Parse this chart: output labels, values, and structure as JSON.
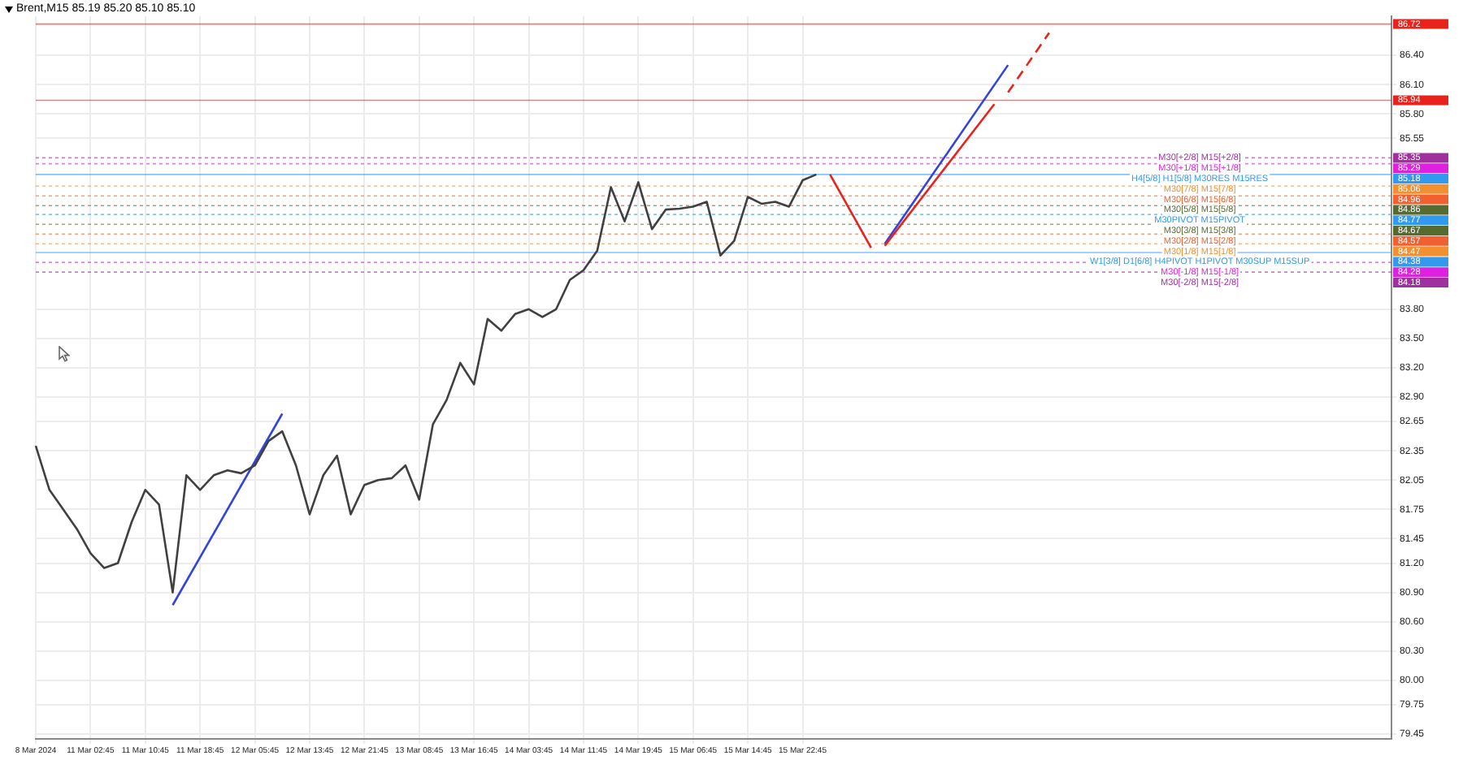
{
  "chart_data": {
    "type": "line",
    "title": "Brent,M15  85.19 85.20 85.10 85.10",
    "categories": [
      "8 Mar 2024",
      null,
      null,
      null,
      "11 Mar 02:45",
      null,
      null,
      null,
      "11 Mar 10:45",
      null,
      null,
      null,
      "11 Mar 18:45",
      null,
      null,
      null,
      "12 Mar 05:45",
      null,
      null,
      null,
      "12 Mar 13:45",
      null,
      null,
      null,
      "12 Mar 21:45",
      null,
      null,
      null,
      "13 Mar 08:45",
      null,
      null,
      null,
      "13 Mar 16:45",
      null,
      null,
      null,
      "14 Mar 03:45",
      null,
      null,
      null,
      "14 Mar 11:45",
      null,
      null,
      null,
      "14 Mar 19:45",
      null,
      null,
      null,
      "15 Mar 06:45",
      null,
      null,
      null,
      "15 Mar 14:45",
      null,
      null,
      null,
      "15 Mar 22:45",
      null,
      null,
      null,
      null,
      null,
      null,
      null,
      null,
      null,
      null,
      null,
      null,
      null,
      null,
      null,
      null,
      null,
      null,
      null,
      null,
      null,
      null,
      null,
      null,
      null,
      null,
      null,
      null,
      null,
      null,
      null,
      null,
      null,
      null,
      null,
      null,
      null,
      null,
      null,
      null,
      null,
      null,
      null
    ],
    "series": [
      {
        "color": "#404040",
        "values": [
          82.4,
          81.95,
          81.75,
          81.55,
          81.3,
          81.15,
          81.2,
          81.62,
          81.95,
          81.8,
          80.9,
          82.1,
          81.95,
          82.1,
          82.15,
          82.12,
          82.2,
          82.45,
          82.55,
          82.2,
          81.7,
          82.1,
          82.3,
          81.7,
          82.0,
          82.05,
          82.07,
          82.2,
          81.85,
          82.62,
          82.87,
          83.25,
          83.03,
          83.7,
          83.58,
          83.75,
          83.8,
          83.72,
          83.8,
          84.1,
          84.2,
          84.4,
          85.05,
          84.7,
          85.1,
          84.62,
          84.82,
          84.83,
          84.85,
          84.9,
          84.35,
          84.5,
          84.95,
          84.88,
          84.9,
          84.85,
          85.12,
          85.18,
          null,
          null,
          null,
          null,
          null,
          null,
          null,
          null,
          null,
          null,
          null,
          null,
          null,
          null,
          null,
          null,
          null,
          null,
          null,
          null,
          null,
          null,
          null,
          null,
          null,
          null,
          null,
          null,
          null,
          null,
          null,
          null,
          null,
          null,
          null,
          null,
          null,
          null,
          null,
          null,
          null,
          null
        ]
      },
      {
        "color": "#3344dd",
        "values": [
          null,
          null,
          null,
          null,
          null,
          null,
          null,
          null,
          null,
          null,
          80.77,
          null,
          null,
          null,
          null,
          null,
          null,
          null,
          82.73,
          null,
          null,
          null,
          null,
          null,
          null,
          null,
          null,
          null,
          null,
          null,
          null,
          null,
          null,
          null,
          null,
          null,
          null,
          null,
          null,
          null,
          null,
          null,
          null,
          null,
          null,
          null,
          null,
          null,
          null,
          null,
          null,
          null,
          null,
          null,
          null,
          null,
          null,
          null,
          null,
          null,
          null,
          null,
          null,
          null,
          null,
          null,
          null,
          null,
          null,
          null,
          null,
          null,
          null,
          null,
          null,
          null,
          null,
          null,
          null,
          null,
          null,
          null,
          null,
          null,
          null,
          null,
          null,
          null,
          null,
          null,
          null,
          null,
          null,
          null,
          null,
          null,
          null,
          null,
          null,
          null
        ]
      },
      {
        "color": "#e8231c",
        "values": [
          null,
          null,
          null,
          null,
          null,
          null,
          null,
          null,
          null,
          null,
          null,
          null,
          null,
          null,
          null,
          null,
          null,
          null,
          null,
          null,
          null,
          null,
          null,
          null,
          null,
          null,
          null,
          null,
          null,
          null,
          null,
          null,
          null,
          null,
          null,
          null,
          null,
          null,
          null,
          null,
          null,
          null,
          null,
          null,
          null,
          null,
          null,
          null,
          null,
          null,
          null,
          null,
          null,
          null,
          null,
          null,
          null,
          null,
          85.18,
          null,
          null,
          84.43,
          null,
          null,
          null,
          null,
          null,
          null,
          null,
          null,
          null,
          null,
          null,
          null,
          null,
          null,
          null,
          null,
          null,
          null,
          null,
          null,
          null,
          null,
          null,
          null,
          null,
          null,
          null,
          null,
          null,
          null,
          null,
          null,
          null,
          null,
          null,
          null,
          null,
          null
        ]
      },
      {
        "color": "#e8231c",
        "values": [
          null,
          null,
          null,
          null,
          null,
          null,
          null,
          null,
          null,
          null,
          null,
          null,
          null,
          null,
          null,
          null,
          null,
          null,
          null,
          null,
          null,
          null,
          null,
          null,
          null,
          null,
          null,
          null,
          null,
          null,
          null,
          null,
          null,
          null,
          null,
          null,
          null,
          null,
          null,
          null,
          null,
          null,
          null,
          null,
          null,
          null,
          null,
          null,
          null,
          null,
          null,
          null,
          null,
          null,
          null,
          null,
          null,
          null,
          null,
          null,
          null,
          null,
          84.45,
          null,
          null,
          null,
          null,
          null,
          null,
          null,
          85.9,
          null,
          null,
          null,
          null,
          null,
          null,
          null,
          null,
          null,
          null,
          null,
          null,
          null,
          null,
          null,
          null,
          null,
          null,
          null,
          null,
          null,
          null,
          null,
          null,
          null,
          null,
          null,
          null,
          null
        ]
      },
      {
        "color": "#e8231c",
        "line_style": "dashed",
        "values": [
          null,
          null,
          null,
          null,
          null,
          null,
          null,
          null,
          null,
          null,
          null,
          null,
          null,
          null,
          null,
          null,
          null,
          null,
          null,
          null,
          null,
          null,
          null,
          null,
          null,
          null,
          null,
          null,
          null,
          null,
          null,
          null,
          null,
          null,
          null,
          null,
          null,
          null,
          null,
          null,
          null,
          null,
          null,
          null,
          null,
          null,
          null,
          null,
          null,
          null,
          null,
          null,
          null,
          null,
          null,
          null,
          null,
          null,
          null,
          null,
          null,
          null,
          null,
          null,
          null,
          null,
          null,
          null,
          null,
          null,
          null,
          86.02,
          null,
          null,
          86.63,
          null,
          null,
          null,
          null,
          null,
          null,
          null,
          null,
          null,
          null,
          null,
          null,
          null,
          null,
          null,
          null,
          null,
          null,
          null,
          null,
          null,
          null,
          null,
          null,
          null
        ]
      },
      {
        "color": "#3344dd",
        "values": [
          null,
          null,
          null,
          null,
          null,
          null,
          null,
          null,
          null,
          null,
          null,
          null,
          null,
          null,
          null,
          null,
          null,
          null,
          null,
          null,
          null,
          null,
          null,
          null,
          null,
          null,
          null,
          null,
          null,
          null,
          null,
          null,
          null,
          null,
          null,
          null,
          null,
          null,
          null,
          null,
          null,
          null,
          null,
          null,
          null,
          null,
          null,
          null,
          null,
          null,
          null,
          null,
          null,
          null,
          null,
          null,
          null,
          null,
          null,
          null,
          null,
          null,
          84.47,
          null,
          null,
          null,
          null,
          null,
          null,
          null,
          null,
          86.3,
          null,
          null,
          null,
          null,
          null,
          null,
          null,
          null,
          null,
          null,
          null,
          null,
          null,
          null,
          null,
          null,
          null,
          null,
          null,
          null,
          null,
          null,
          null,
          null,
          null,
          null,
          null,
          null
        ]
      }
    ],
    "ylim": [
      79.4,
      86.8
    ],
    "yticks": [
      79.45,
      79.75,
      {
        "value": 80,
        "label": "80.00"
      },
      {
        "value": 80.3,
        "label": "80.30"
      },
      {
        "value": 80.6,
        "label": "80.60"
      },
      {
        "value": 80.9,
        "label": "80.90"
      },
      {
        "value": 81.2,
        "label": "81.20"
      },
      81.45,
      81.75,
      82.05,
      82.35,
      82.65,
      {
        "value": 82.9,
        "label": "82.90"
      },
      {
        "value": 83.2,
        "label": "83.20"
      },
      {
        "value": 83.5,
        "label": "83.50"
      },
      {
        "value": 83.8,
        "label": "83.80"
      },
      85.55,
      {
        "value": 85.8,
        "label": "85.80"
      },
      {
        "value": 86.1,
        "label": "86.10"
      },
      {
        "value": 86.4,
        "label": "86.40"
      }
    ],
    "annotations": [
      {
        "text": "M30[+2/8] M15[+2/8]",
        "y": 85.35
      },
      {
        "text": "M30[+1/8] M15[+1/8]",
        "y": 85.29
      },
      {
        "text": "H4[5/8] H1[5/8] M30RES M15RES",
        "y": 85.18
      },
      {
        "text": "M30[7/8] M15[7/8]",
        "y": 85.06
      },
      {
        "text": "M30[6/8] M15[6/8]",
        "y": 84.96
      },
      {
        "text": "M30[5/8] M15[5/8]",
        "y": 84.86
      },
      {
        "text": "M30PIVOT M15PIVOT",
        "y": 84.77
      },
      {
        "text": "M30[3/8] M15[3/8]",
        "y": 84.67
      },
      {
        "text": "M30[2/8] M15[2/8]",
        "y": 84.57
      },
      {
        "text": "M30[1/8] M15[1/8]",
        "y": 84.47
      },
      {
        "text": "W1[3/8] D1[6/8] H4PIVOT H1PIVOT M30SUP M15SUP",
        "y": 84.38
      },
      {
        "text": "M30[-1/8] M15[-1/8]",
        "y": 84.28
      },
      {
        "text": "M30[-2/8] M15[-2/8]",
        "y": 84.18
      }
    ],
    "ref_lines": [
      {
        "axis": "y",
        "value": 86.72,
        "label": "86.72",
        "color": "#e8231c",
        "line_style": "solid"
      },
      {
        "axis": "y",
        "value": 85.94,
        "label": "85.94",
        "color": "#e8231c",
        "line_style": "solid"
      },
      {
        "axis": "y",
        "value": 85.35,
        "label": "85.35",
        "color": "#a0309e",
        "line_style": "dotted"
      },
      {
        "axis": "y",
        "value": 85.29,
        "label": "85.29",
        "color": "#e020e0",
        "line_style": "dotted"
      },
      {
        "axis": "y",
        "value": 85.18,
        "label": "85.18",
        "color": "#3399ee",
        "line_style": "solid"
      },
      {
        "axis": "y",
        "value": 85.06,
        "label": "85.06",
        "color": "#f09030",
        "line_style": "dotted"
      },
      {
        "axis": "y",
        "value": 84.96,
        "label": "84.96",
        "color": "#f06030",
        "line_style": "dotted"
      },
      {
        "axis": "y",
        "value": 84.86,
        "label": "84.86",
        "color": "#556b2f",
        "line_style": "dotted"
      },
      {
        "axis": "y",
        "value": 84.77,
        "label": "84.77",
        "color": "#3399ee",
        "line_style": "dotted"
      },
      {
        "axis": "y",
        "value": 84.67,
        "label": "84.67",
        "color": "#556b2f",
        "line_style": "dotted"
      },
      {
        "axis": "y",
        "value": 84.57,
        "label": "84.57",
        "color": "#f06030",
        "line_style": "dotted"
      },
      {
        "axis": "y",
        "value": 84.47,
        "label": "84.47",
        "color": "#f09030",
        "line_style": "dotted"
      },
      {
        "axis": "y",
        "value": 84.38,
        "label": "84.38",
        "color": "#3399ee",
        "line_style": "solid"
      },
      {
        "axis": "y",
        "value": 84.28,
        "label": "84.28",
        "color": "#e020e0",
        "line_style": "dotted"
      },
      {
        "axis": "y",
        "value": 84.18,
        "label": "84.18",
        "color": "#a0309e",
        "line_style": "dotted"
      }
    ],
    "grid": true,
    "legend": false,
    "marker": "none"
  }
}
